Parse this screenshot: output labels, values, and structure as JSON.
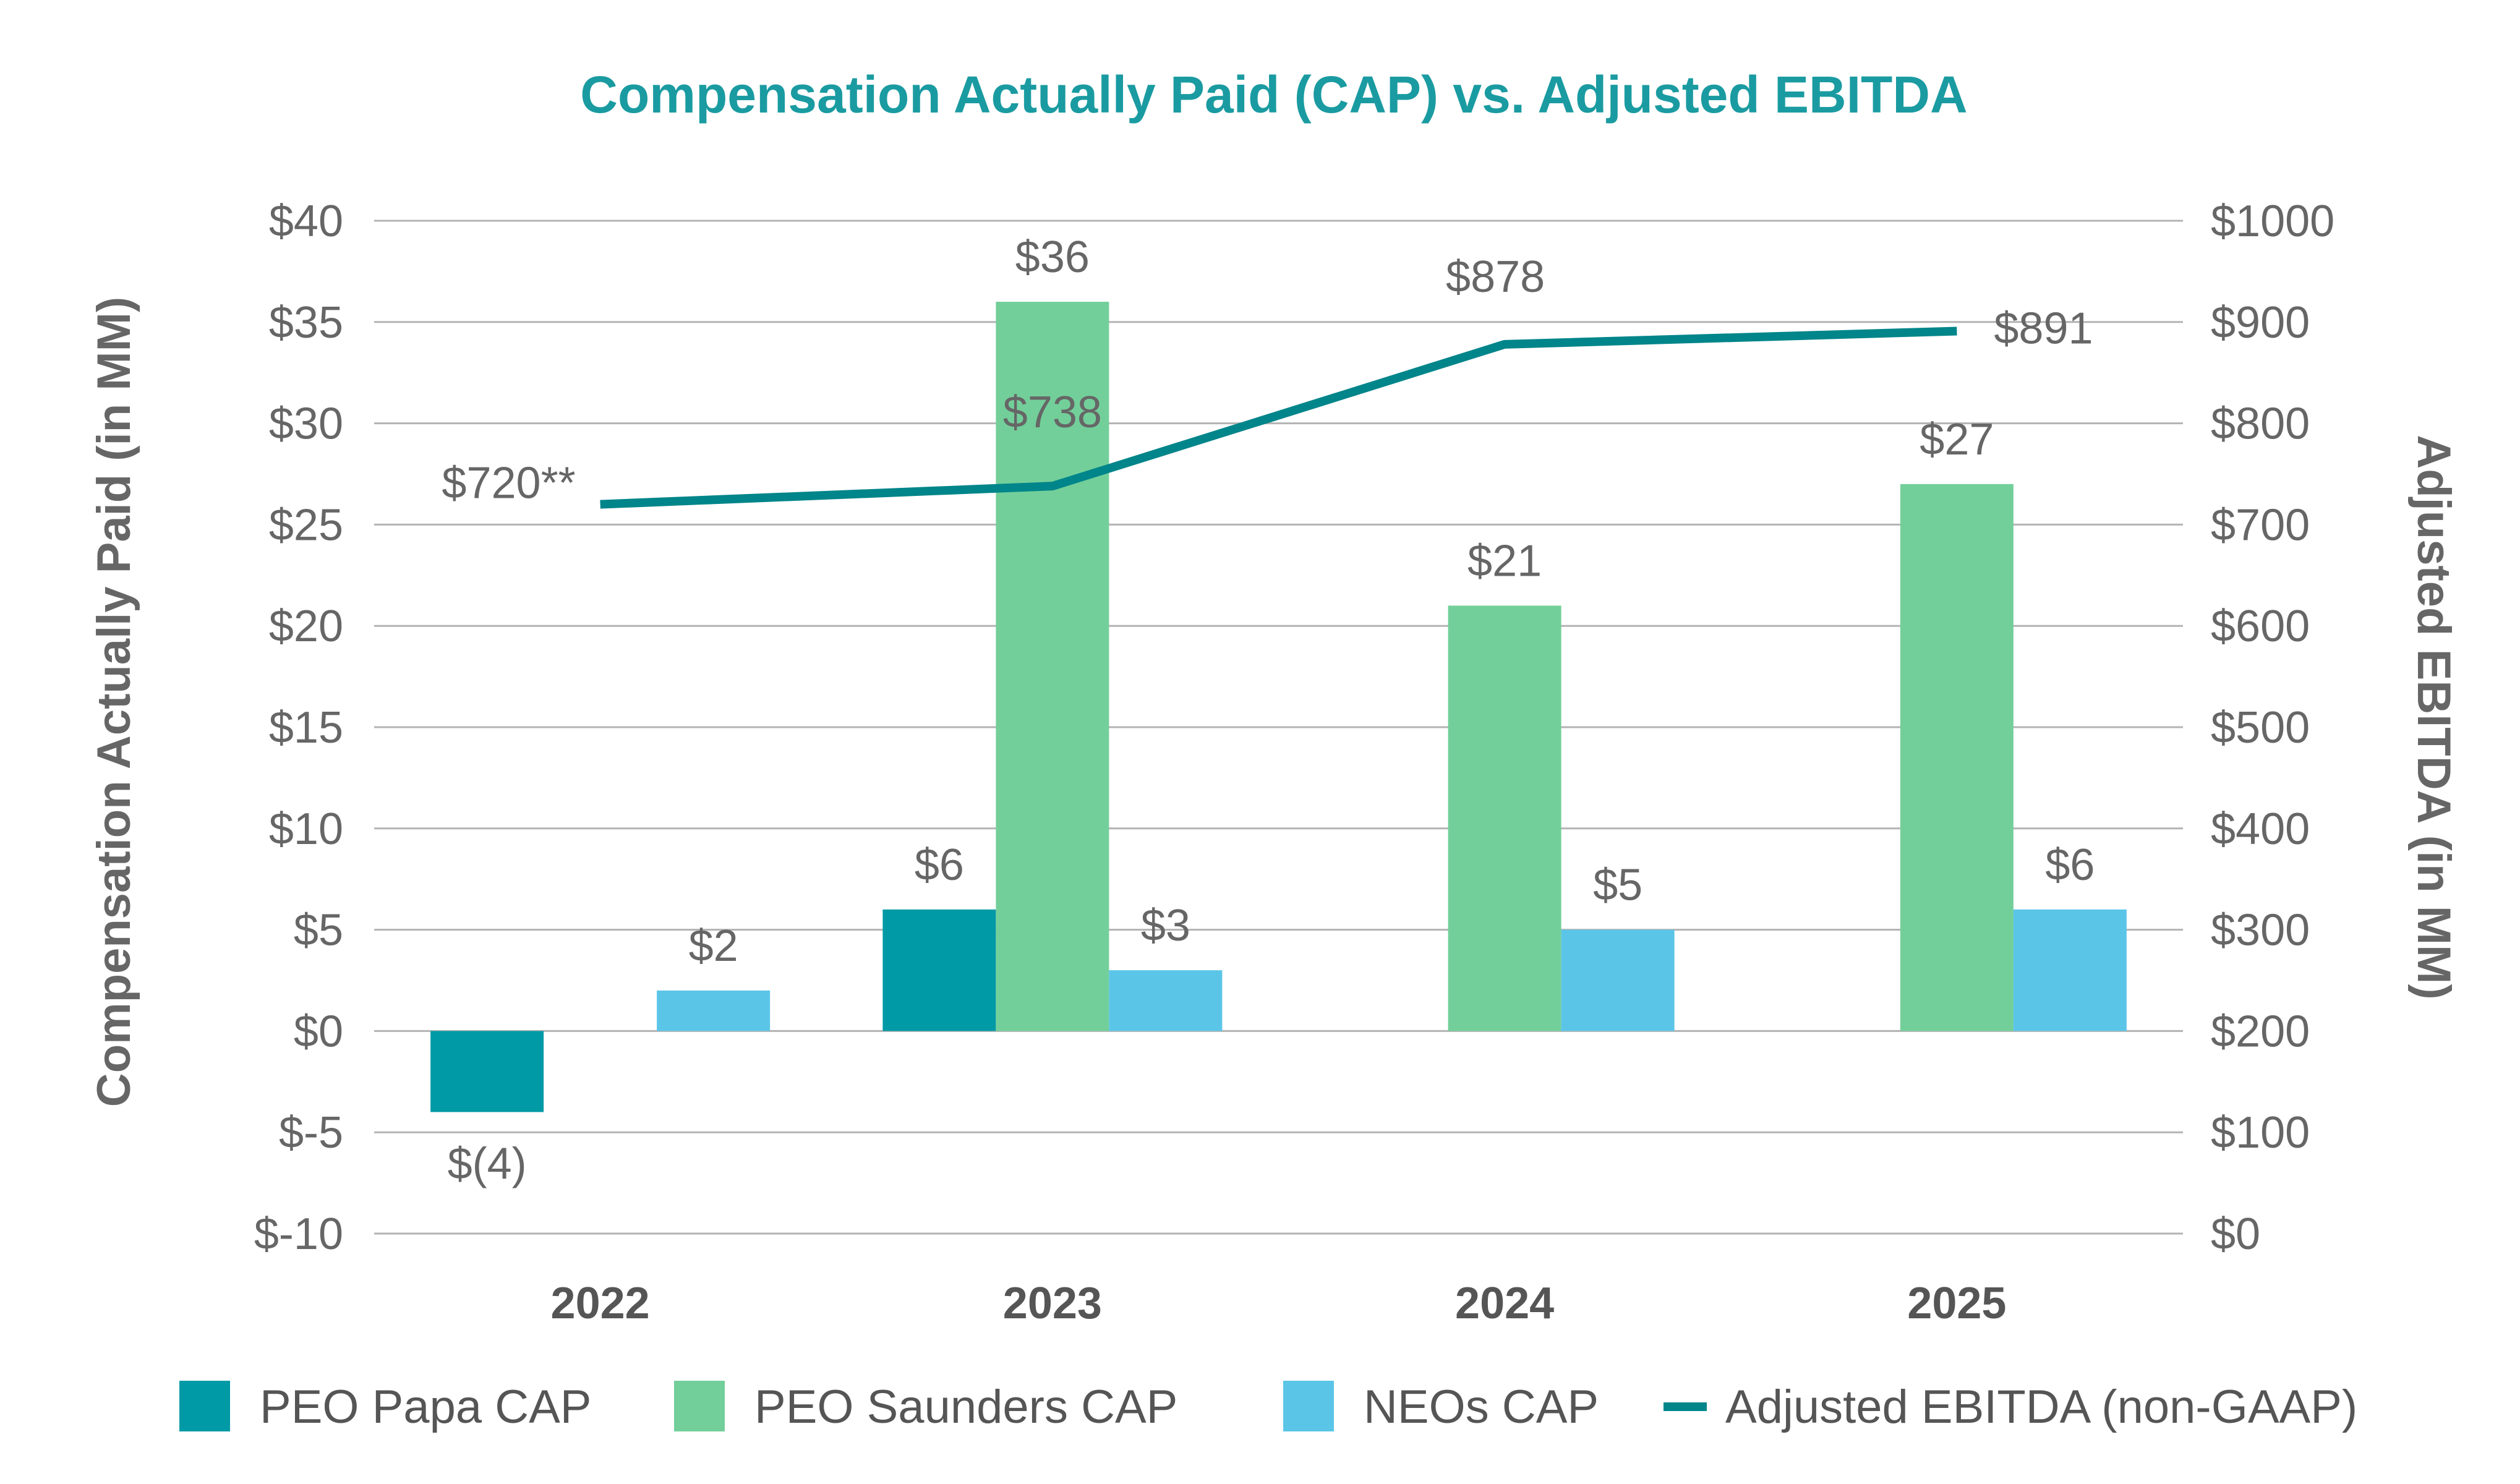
{
  "chart_data": {
    "type": "bar",
    "title": "Compensation Actually Paid (CAP) vs. Adjusted EBITDA",
    "categories": [
      "2022",
      "2023",
      "2024",
      "2025"
    ],
    "ylabel": "Compensation Actually Paid (in MM)",
    "y2label": "Adjusted EBITDA (in MM)",
    "ylim": [
      -10,
      40
    ],
    "y2lim": [
      0,
      1000
    ],
    "yticks": [
      "$40",
      "$35",
      "$30",
      "$25",
      "$20",
      "$15",
      "$10",
      "$5",
      "$0",
      "$-5",
      "$-10"
    ],
    "y2ticks": [
      "$1000",
      "$900",
      "$800",
      "$700",
      "$600",
      "$500",
      "$400",
      "$300",
      "$200",
      "$100",
      "$0"
    ],
    "grid": true,
    "legend_position": "bottom",
    "series": [
      {
        "name": "PEO Papa CAP",
        "type": "bar",
        "color": "#009aa6",
        "values": [
          -4,
          6,
          null,
          null
        ],
        "labels": [
          "$(4)",
          "$6",
          "",
          ""
        ]
      },
      {
        "name": "PEO Saunders CAP",
        "type": "bar",
        "color": "#73cf9a",
        "values": [
          null,
          36,
          21,
          27
        ],
        "labels": [
          "",
          "$36",
          "$21",
          "$27"
        ]
      },
      {
        "name": "NEOs CAP",
        "type": "bar",
        "color": "#5bc5e8",
        "values": [
          2,
          3,
          5,
          6
        ],
        "labels": [
          "$2",
          "$3",
          "$5",
          "$6"
        ]
      },
      {
        "name": "Adjusted EBITDA (non-GAAP)",
        "type": "line",
        "axis": "right",
        "color": "#00858a",
        "values": [
          720,
          738,
          878,
          891
        ],
        "labels": [
          "$720**",
          "$738",
          "$878",
          "$891"
        ]
      }
    ]
  },
  "colors": {
    "title": "#1a9ba1",
    "grid": "#b3b3b3",
    "text": "#666666"
  }
}
